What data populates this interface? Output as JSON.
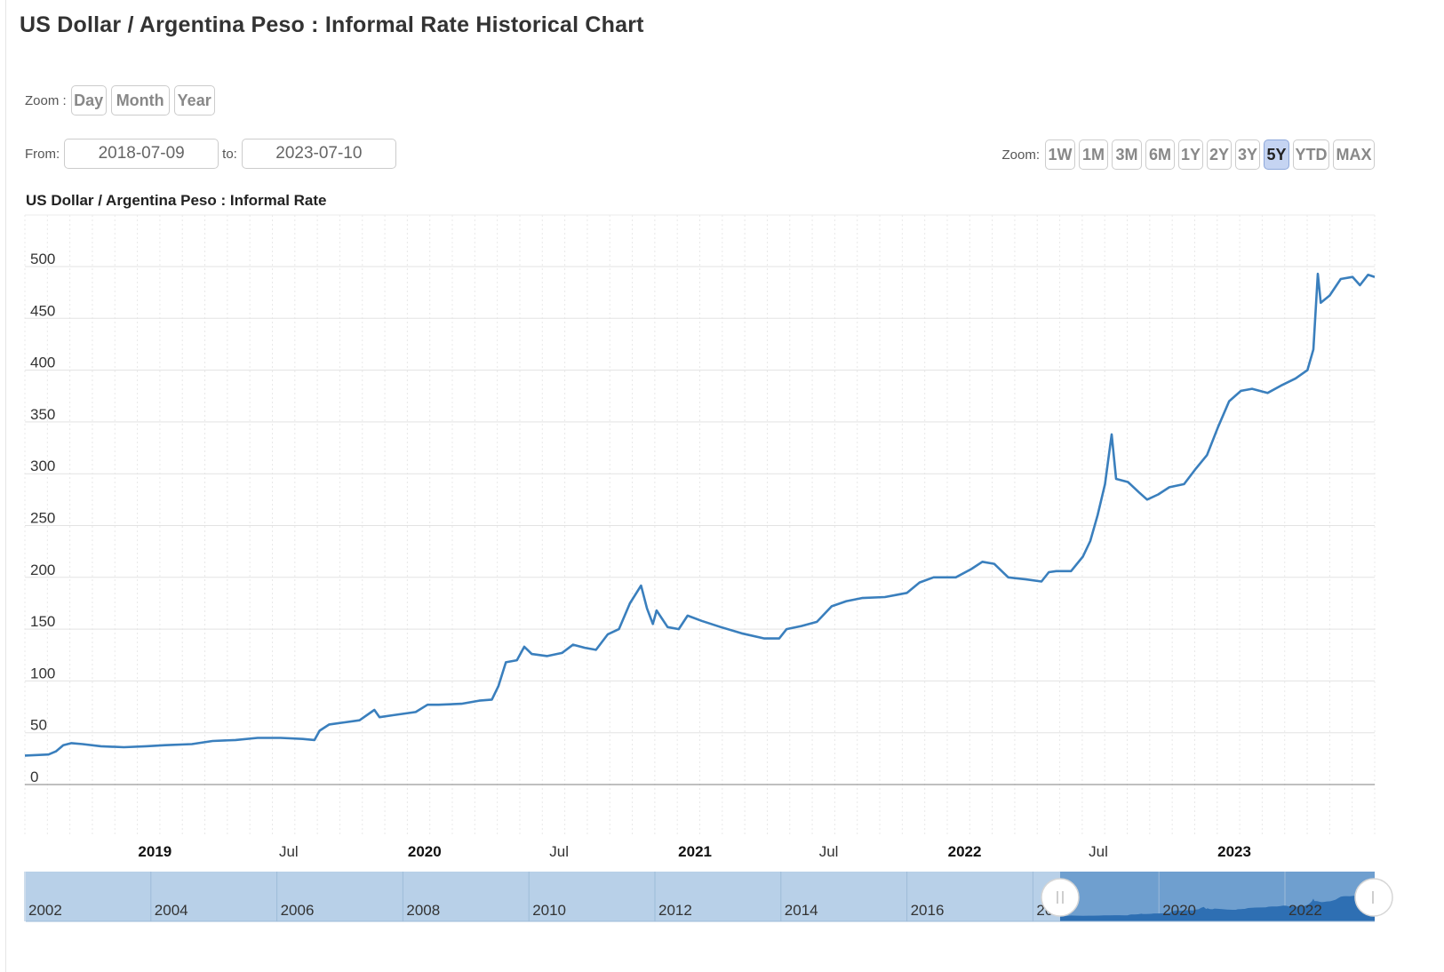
{
  "page_title": "US Dollar / Argentina Peso : Informal Rate Historical Chart",
  "zoom_units": {
    "label": "Zoom :",
    "buttons": [
      "Day",
      "Month",
      "Year"
    ]
  },
  "range": {
    "from_label": "From:",
    "from_value": "2018-07-09",
    "to_label": "to:",
    "to_value": "2023-07-10"
  },
  "zoom_periods": {
    "label": "Zoom:",
    "buttons": [
      "1W",
      "1M",
      "3M",
      "6M",
      "1Y",
      "2Y",
      "3Y",
      "5Y",
      "YTD",
      "MAX"
    ],
    "active": "5Y"
  },
  "colors": {
    "line": "#3a7fbd",
    "navigator_bg": "#b8d0e8",
    "navigator_selected": "#6f9fcf",
    "navigator_area": "#2e6fb3",
    "active_button": "#c5d4f2"
  },
  "chart_data": {
    "type": "line",
    "title": "US Dollar / Argentina Peso : Informal Rate",
    "xlabel": "",
    "ylabel": "",
    "ylim": [
      0,
      500
    ],
    "yticks": [
      "0",
      "50",
      "100",
      "150",
      "200",
      "250",
      "300",
      "350",
      "400",
      "450",
      "500"
    ],
    "xlim": [
      "2018-07-09",
      "2023-07-10"
    ],
    "xticks": [
      {
        "label": "2019",
        "date": "2019-01-01",
        "bold": true
      },
      {
        "label": "Jul",
        "date": "2019-07-01",
        "bold": false
      },
      {
        "label": "2020",
        "date": "2020-01-01",
        "bold": true
      },
      {
        "label": "Jul",
        "date": "2020-07-01",
        "bold": false
      },
      {
        "label": "2021",
        "date": "2021-01-01",
        "bold": true
      },
      {
        "label": "Jul",
        "date": "2021-07-01",
        "bold": false
      },
      {
        "label": "2022",
        "date": "2022-01-01",
        "bold": true
      },
      {
        "label": "Jul",
        "date": "2022-07-01",
        "bold": false
      },
      {
        "label": "2023",
        "date": "2023-01-01",
        "bold": true
      }
    ],
    "grid": true,
    "legend": "none",
    "series": [
      {
        "points": [
          [
            "2018-07-09",
            28
          ],
          [
            "2018-08-10",
            29
          ],
          [
            "2018-08-20",
            32
          ],
          [
            "2018-08-30",
            38
          ],
          [
            "2018-09-10",
            40
          ],
          [
            "2018-09-25",
            39
          ],
          [
            "2018-10-20",
            37
          ],
          [
            "2018-11-20",
            36
          ],
          [
            "2018-12-20",
            37
          ],
          [
            "2019-01-15",
            38
          ],
          [
            "2019-02-20",
            39
          ],
          [
            "2019-03-20",
            42
          ],
          [
            "2019-04-20",
            43
          ],
          [
            "2019-05-20",
            45
          ],
          [
            "2019-06-20",
            45
          ],
          [
            "2019-07-20",
            44
          ],
          [
            "2019-08-05",
            43
          ],
          [
            "2019-08-12",
            52
          ],
          [
            "2019-08-25",
            58
          ],
          [
            "2019-09-15",
            60
          ],
          [
            "2019-10-05",
            62
          ],
          [
            "2019-10-25",
            72
          ],
          [
            "2019-11-01",
            65
          ],
          [
            "2019-11-20",
            67
          ],
          [
            "2019-12-20",
            70
          ],
          [
            "2020-01-05",
            77
          ],
          [
            "2020-01-20",
            77
          ],
          [
            "2020-02-20",
            78
          ],
          [
            "2020-03-15",
            81
          ],
          [
            "2020-04-01",
            82
          ],
          [
            "2020-04-10",
            95
          ],
          [
            "2020-04-20",
            118
          ],
          [
            "2020-05-05",
            120
          ],
          [
            "2020-05-15",
            133
          ],
          [
            "2020-05-25",
            126
          ],
          [
            "2020-06-15",
            124
          ],
          [
            "2020-07-05",
            127
          ],
          [
            "2020-07-20",
            135
          ],
          [
            "2020-08-05",
            132
          ],
          [
            "2020-08-20",
            130
          ],
          [
            "2020-09-05",
            145
          ],
          [
            "2020-09-20",
            150
          ],
          [
            "2020-10-05",
            175
          ],
          [
            "2020-10-20",
            192
          ],
          [
            "2020-10-28",
            170
          ],
          [
            "2020-11-05",
            155
          ],
          [
            "2020-11-10",
            168
          ],
          [
            "2020-11-25",
            152
          ],
          [
            "2020-12-10",
            150
          ],
          [
            "2020-12-22",
            163
          ],
          [
            "2021-01-10",
            158
          ],
          [
            "2021-02-05",
            152
          ],
          [
            "2021-03-05",
            146
          ],
          [
            "2021-04-05",
            141
          ],
          [
            "2021-04-25",
            141
          ],
          [
            "2021-05-05",
            150
          ],
          [
            "2021-05-25",
            153
          ],
          [
            "2021-06-15",
            157
          ],
          [
            "2021-07-05",
            172
          ],
          [
            "2021-07-25",
            177
          ],
          [
            "2021-08-15",
            180
          ],
          [
            "2021-09-15",
            181
          ],
          [
            "2021-10-15",
            185
          ],
          [
            "2021-11-01",
            195
          ],
          [
            "2021-11-20",
            200
          ],
          [
            "2021-12-20",
            200
          ],
          [
            "2022-01-10",
            208
          ],
          [
            "2022-01-25",
            215
          ],
          [
            "2022-02-10",
            213
          ],
          [
            "2022-03-01",
            200
          ],
          [
            "2022-03-25",
            198
          ],
          [
            "2022-04-15",
            196
          ],
          [
            "2022-04-25",
            205
          ],
          [
            "2022-05-05",
            206
          ],
          [
            "2022-05-25",
            206
          ],
          [
            "2022-06-10",
            220
          ],
          [
            "2022-06-20",
            235
          ],
          [
            "2022-06-30",
            260
          ],
          [
            "2022-07-10",
            290
          ],
          [
            "2022-07-19",
            338
          ],
          [
            "2022-07-25",
            295
          ],
          [
            "2022-08-10",
            292
          ],
          [
            "2022-08-25",
            282
          ],
          [
            "2022-09-05",
            275
          ],
          [
            "2022-09-20",
            280
          ],
          [
            "2022-10-05",
            287
          ],
          [
            "2022-10-25",
            290
          ],
          [
            "2022-11-10",
            305
          ],
          [
            "2022-11-25",
            318
          ],
          [
            "2022-12-10",
            345
          ],
          [
            "2022-12-25",
            370
          ],
          [
            "2023-01-10",
            380
          ],
          [
            "2023-01-25",
            382
          ],
          [
            "2023-02-15",
            378
          ],
          [
            "2023-03-05",
            385
          ],
          [
            "2023-03-25",
            392
          ],
          [
            "2023-04-10",
            400
          ],
          [
            "2023-04-18",
            420
          ],
          [
            "2023-04-24",
            493
          ],
          [
            "2023-04-28",
            465
          ],
          [
            "2023-05-10",
            472
          ],
          [
            "2023-05-25",
            488
          ],
          [
            "2023-06-10",
            490
          ],
          [
            "2023-06-20",
            482
          ],
          [
            "2023-07-01",
            492
          ],
          [
            "2023-07-10",
            490
          ]
        ]
      }
    ]
  },
  "navigator": {
    "labels": [
      "2002",
      "2004",
      "2006",
      "2008",
      "2010",
      "2012",
      "2014",
      "2016",
      "20",
      "2020",
      "2022"
    ],
    "handle_icon": "grip-handle-icon"
  }
}
